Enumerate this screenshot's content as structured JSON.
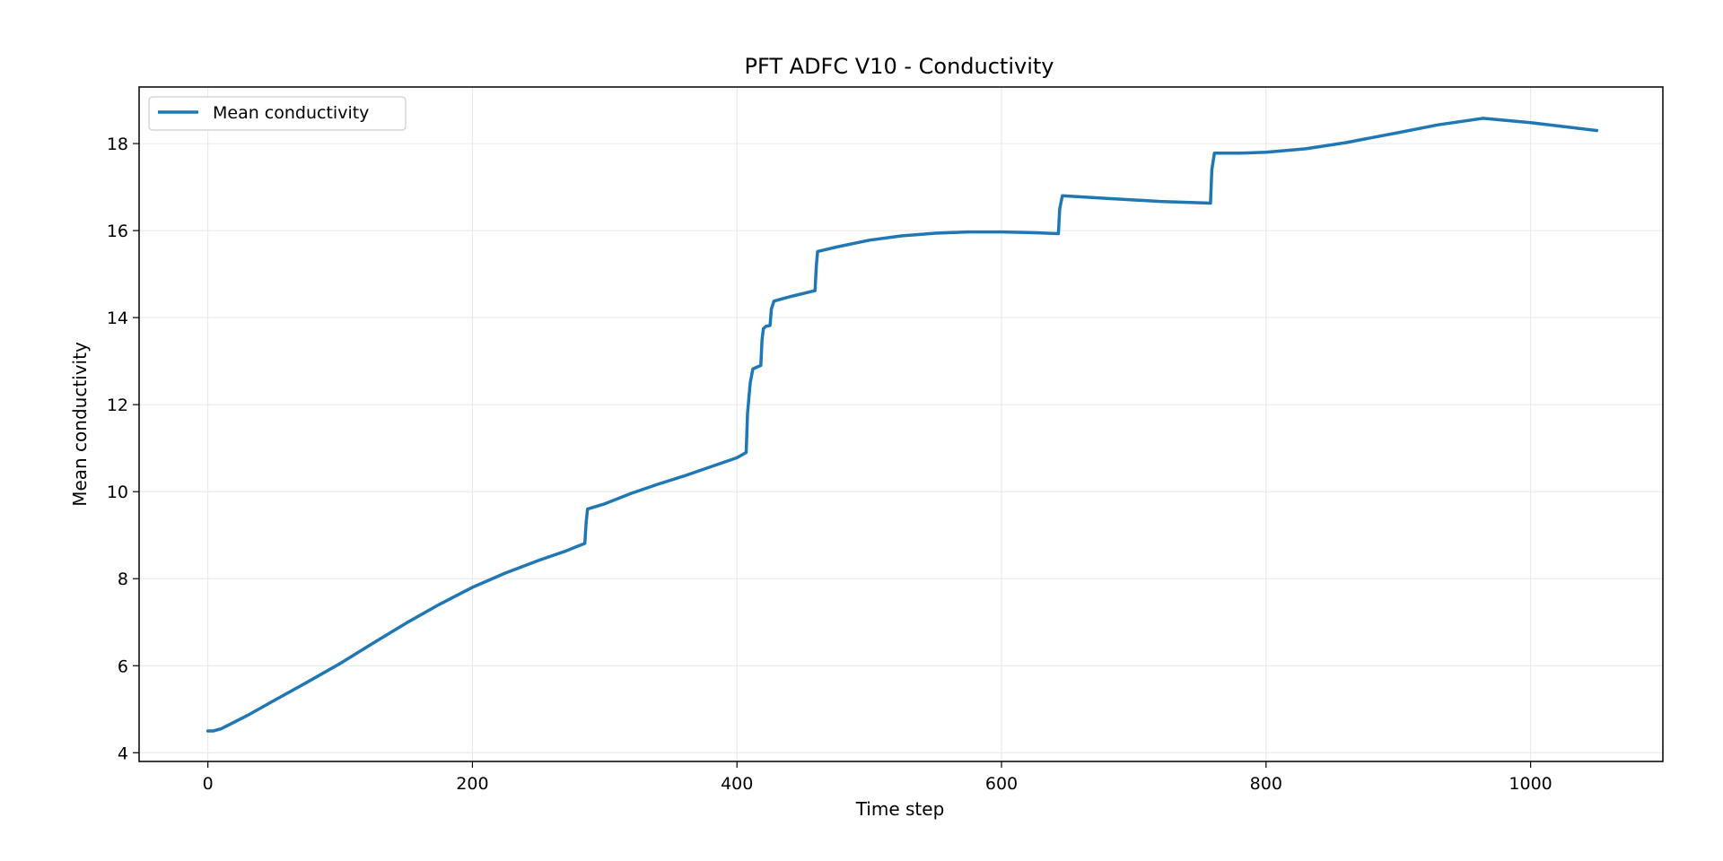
{
  "chart_data": {
    "type": "line",
    "title": "PFT ADFC V10 - Conductivity",
    "xlabel": "Time step",
    "ylabel": "Mean conductivity",
    "xlim": [
      -52,
      1100
    ],
    "ylim": [
      3.8,
      19.3
    ],
    "xticks": [
      0,
      200,
      400,
      600,
      800,
      1000
    ],
    "yticks": [
      4,
      6,
      8,
      10,
      12,
      14,
      16,
      18
    ],
    "grid": true,
    "legend_position": "top-left",
    "series": [
      {
        "name": "Mean conductivity",
        "color": "#1f77b4",
        "points": [
          [
            0,
            4.5
          ],
          [
            4,
            4.5
          ],
          [
            10,
            4.55
          ],
          [
            30,
            4.86
          ],
          [
            50,
            5.2
          ],
          [
            75,
            5.62
          ],
          [
            100,
            6.05
          ],
          [
            125,
            6.52
          ],
          [
            150,
            6.98
          ],
          [
            175,
            7.41
          ],
          [
            200,
            7.8
          ],
          [
            225,
            8.13
          ],
          [
            250,
            8.42
          ],
          [
            270,
            8.63
          ],
          [
            285,
            8.81
          ],
          [
            286,
            9.3
          ],
          [
            287,
            9.6
          ],
          [
            300,
            9.72
          ],
          [
            320,
            9.96
          ],
          [
            340,
            10.17
          ],
          [
            360,
            10.36
          ],
          [
            380,
            10.57
          ],
          [
            400,
            10.78
          ],
          [
            407,
            10.9
          ],
          [
            408,
            11.8
          ],
          [
            410,
            12.5
          ],
          [
            412,
            12.82
          ],
          [
            415,
            12.86
          ],
          [
            418,
            12.9
          ],
          [
            419,
            13.5
          ],
          [
            420,
            13.75
          ],
          [
            422,
            13.8
          ],
          [
            425,
            13.82
          ],
          [
            426,
            14.2
          ],
          [
            428,
            14.38
          ],
          [
            440,
            14.48
          ],
          [
            459,
            14.62
          ],
          [
            460,
            15.2
          ],
          [
            461,
            15.52
          ],
          [
            475,
            15.62
          ],
          [
            500,
            15.78
          ],
          [
            525,
            15.88
          ],
          [
            550,
            15.94
          ],
          [
            575,
            15.97
          ],
          [
            600,
            15.97
          ],
          [
            625,
            15.95
          ],
          [
            643,
            15.93
          ],
          [
            644,
            16.5
          ],
          [
            646,
            16.8
          ],
          [
            680,
            16.74
          ],
          [
            720,
            16.67
          ],
          [
            758,
            16.63
          ],
          [
            759,
            17.4
          ],
          [
            761,
            17.78
          ],
          [
            780,
            17.78
          ],
          [
            800,
            17.8
          ],
          [
            830,
            17.88
          ],
          [
            860,
            18.02
          ],
          [
            900,
            18.25
          ],
          [
            930,
            18.43
          ],
          [
            964,
            18.58
          ],
          [
            1000,
            18.48
          ],
          [
            1050,
            18.3
          ]
        ]
      }
    ]
  }
}
